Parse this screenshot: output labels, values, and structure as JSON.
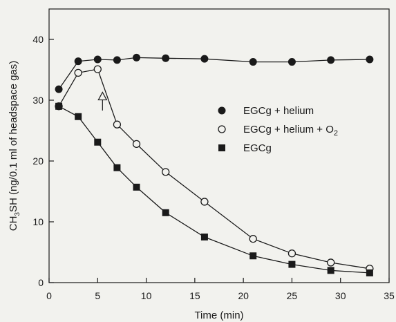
{
  "chart_data": {
    "type": "line",
    "xlabel": "Time (min)",
    "ylabel": {
      "base": "CH",
      "sub": "3",
      "rest": "SH (ng/0.1 ml of headspace gas)"
    },
    "xlim": [
      0,
      35
    ],
    "ylim": [
      0,
      45
    ],
    "xticks": [
      0,
      5,
      10,
      15,
      20,
      25,
      30,
      35
    ],
    "yticks": [
      0,
      10,
      20,
      30,
      40
    ],
    "grid": false,
    "legend_position": "right-middle",
    "annotation": {
      "type": "arrow",
      "x": 5.5,
      "y_from": 28.3,
      "y_to": 31.3
    },
    "series": [
      {
        "name": "EGCg + helium",
        "marker": "filled-circle",
        "x": [
          1,
          3,
          5,
          7,
          9,
          12,
          16,
          21,
          25,
          29,
          33
        ],
        "y": [
          31.8,
          36.4,
          36.7,
          36.6,
          37.0,
          36.9,
          36.8,
          36.3,
          36.3,
          36.6,
          36.7
        ]
      },
      {
        "name": {
          "base": "EGCg + helium + O",
          "sub": "2"
        },
        "marker": "open-circle",
        "x": [
          1,
          3,
          5,
          7,
          9,
          12,
          16,
          21,
          25,
          29,
          33
        ],
        "y": [
          29.0,
          34.5,
          35.1,
          26.0,
          22.8,
          18.2,
          13.3,
          7.2,
          4.8,
          3.3,
          2.3
        ]
      },
      {
        "name": "EGCg",
        "marker": "filled-square",
        "x": [
          1,
          3,
          5,
          7,
          9,
          12,
          16,
          21,
          25,
          29,
          33
        ],
        "y": [
          29.0,
          27.3,
          23.1,
          18.9,
          15.7,
          11.5,
          7.5,
          4.4,
          3.0,
          2.0,
          1.6
        ]
      }
    ]
  },
  "colors": {
    "ink": "#1a1a1a",
    "background": "#f2f2ee"
  }
}
